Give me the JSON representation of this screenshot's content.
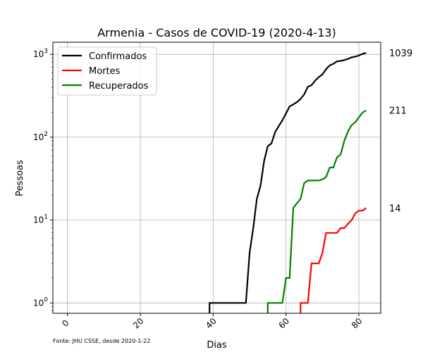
{
  "chart_data": {
    "type": "line",
    "title": "Armenia - Casos de COVID-19 (2020-4-13)",
    "xlabel": "Dias",
    "ylabel": "Pessoas",
    "yscale": "log",
    "xlim": [
      -4,
      86
    ],
    "ylim": [
      0.75,
      1400
    ],
    "grid": true,
    "legend_position": "top-left",
    "x_ticks": [
      0,
      20,
      40,
      60,
      80
    ],
    "y_ticks": [
      {
        "value": 1,
        "base": "10",
        "exp": "0"
      },
      {
        "value": 10,
        "base": "10",
        "exp": "1"
      },
      {
        "value": 100,
        "base": "10",
        "exp": "2"
      },
      {
        "value": 1000,
        "base": "10",
        "exp": "3"
      }
    ],
    "source_note": "Fonte: JHU CSSE, desde 2020-1-22",
    "series": [
      {
        "name": "Confirmados",
        "color": "#000000",
        "end_label": "1039",
        "points": [
          [
            39,
            0
          ],
          [
            39,
            1
          ],
          [
            49,
            1
          ],
          [
            50,
            4
          ],
          [
            51,
            8
          ],
          [
            52,
            18
          ],
          [
            53,
            26
          ],
          [
            54,
            52
          ],
          [
            55,
            78
          ],
          [
            56,
            84
          ],
          [
            57,
            115
          ],
          [
            58,
            136
          ],
          [
            59,
            160
          ],
          [
            60,
            194
          ],
          [
            61,
            235
          ],
          [
            62,
            249
          ],
          [
            63,
            265
          ],
          [
            64,
            290
          ],
          [
            65,
            329
          ],
          [
            66,
            407
          ],
          [
            67,
            424
          ],
          [
            68,
            482
          ],
          [
            69,
            532
          ],
          [
            70,
            571
          ],
          [
            71,
            663
          ],
          [
            72,
            736
          ],
          [
            73,
            770
          ],
          [
            74,
            822
          ],
          [
            75,
            833
          ],
          [
            76,
            853
          ],
          [
            77,
            881
          ],
          [
            78,
            921
          ],
          [
            79,
            937
          ],
          [
            80,
            967
          ],
          [
            81,
            1013
          ],
          [
            82,
            1039
          ]
        ]
      },
      {
        "name": "Mortes",
        "color": "#ff0000",
        "end_label": "14",
        "points": [
          [
            64,
            0
          ],
          [
            64,
            1
          ],
          [
            66,
            1
          ],
          [
            67,
            3
          ],
          [
            69,
            3
          ],
          [
            70,
            4
          ],
          [
            71,
            7
          ],
          [
            74,
            7
          ],
          [
            75,
            8
          ],
          [
            76,
            8
          ],
          [
            77,
            9
          ],
          [
            78,
            10
          ],
          [
            79,
            12
          ],
          [
            80,
            13
          ],
          [
            81,
            13
          ],
          [
            82,
            14
          ]
        ]
      },
      {
        "name": "Recuperados",
        "color": "#008000",
        "end_label": "211",
        "points": [
          [
            55,
            0
          ],
          [
            55,
            1
          ],
          [
            59,
            1
          ],
          [
            60,
            2
          ],
          [
            61,
            2
          ],
          [
            62,
            14
          ],
          [
            63,
            16
          ],
          [
            64,
            18
          ],
          [
            65,
            28
          ],
          [
            66,
            30
          ],
          [
            69,
            30
          ],
          [
            70,
            31
          ],
          [
            71,
            33
          ],
          [
            72,
            43
          ],
          [
            73,
            43
          ],
          [
            74,
            57
          ],
          [
            75,
            62
          ],
          [
            76,
            90
          ],
          [
            77,
            117
          ],
          [
            78,
            140
          ],
          [
            79,
            151
          ],
          [
            80,
            173
          ],
          [
            81,
            198
          ],
          [
            82,
            211
          ]
        ]
      }
    ]
  }
}
